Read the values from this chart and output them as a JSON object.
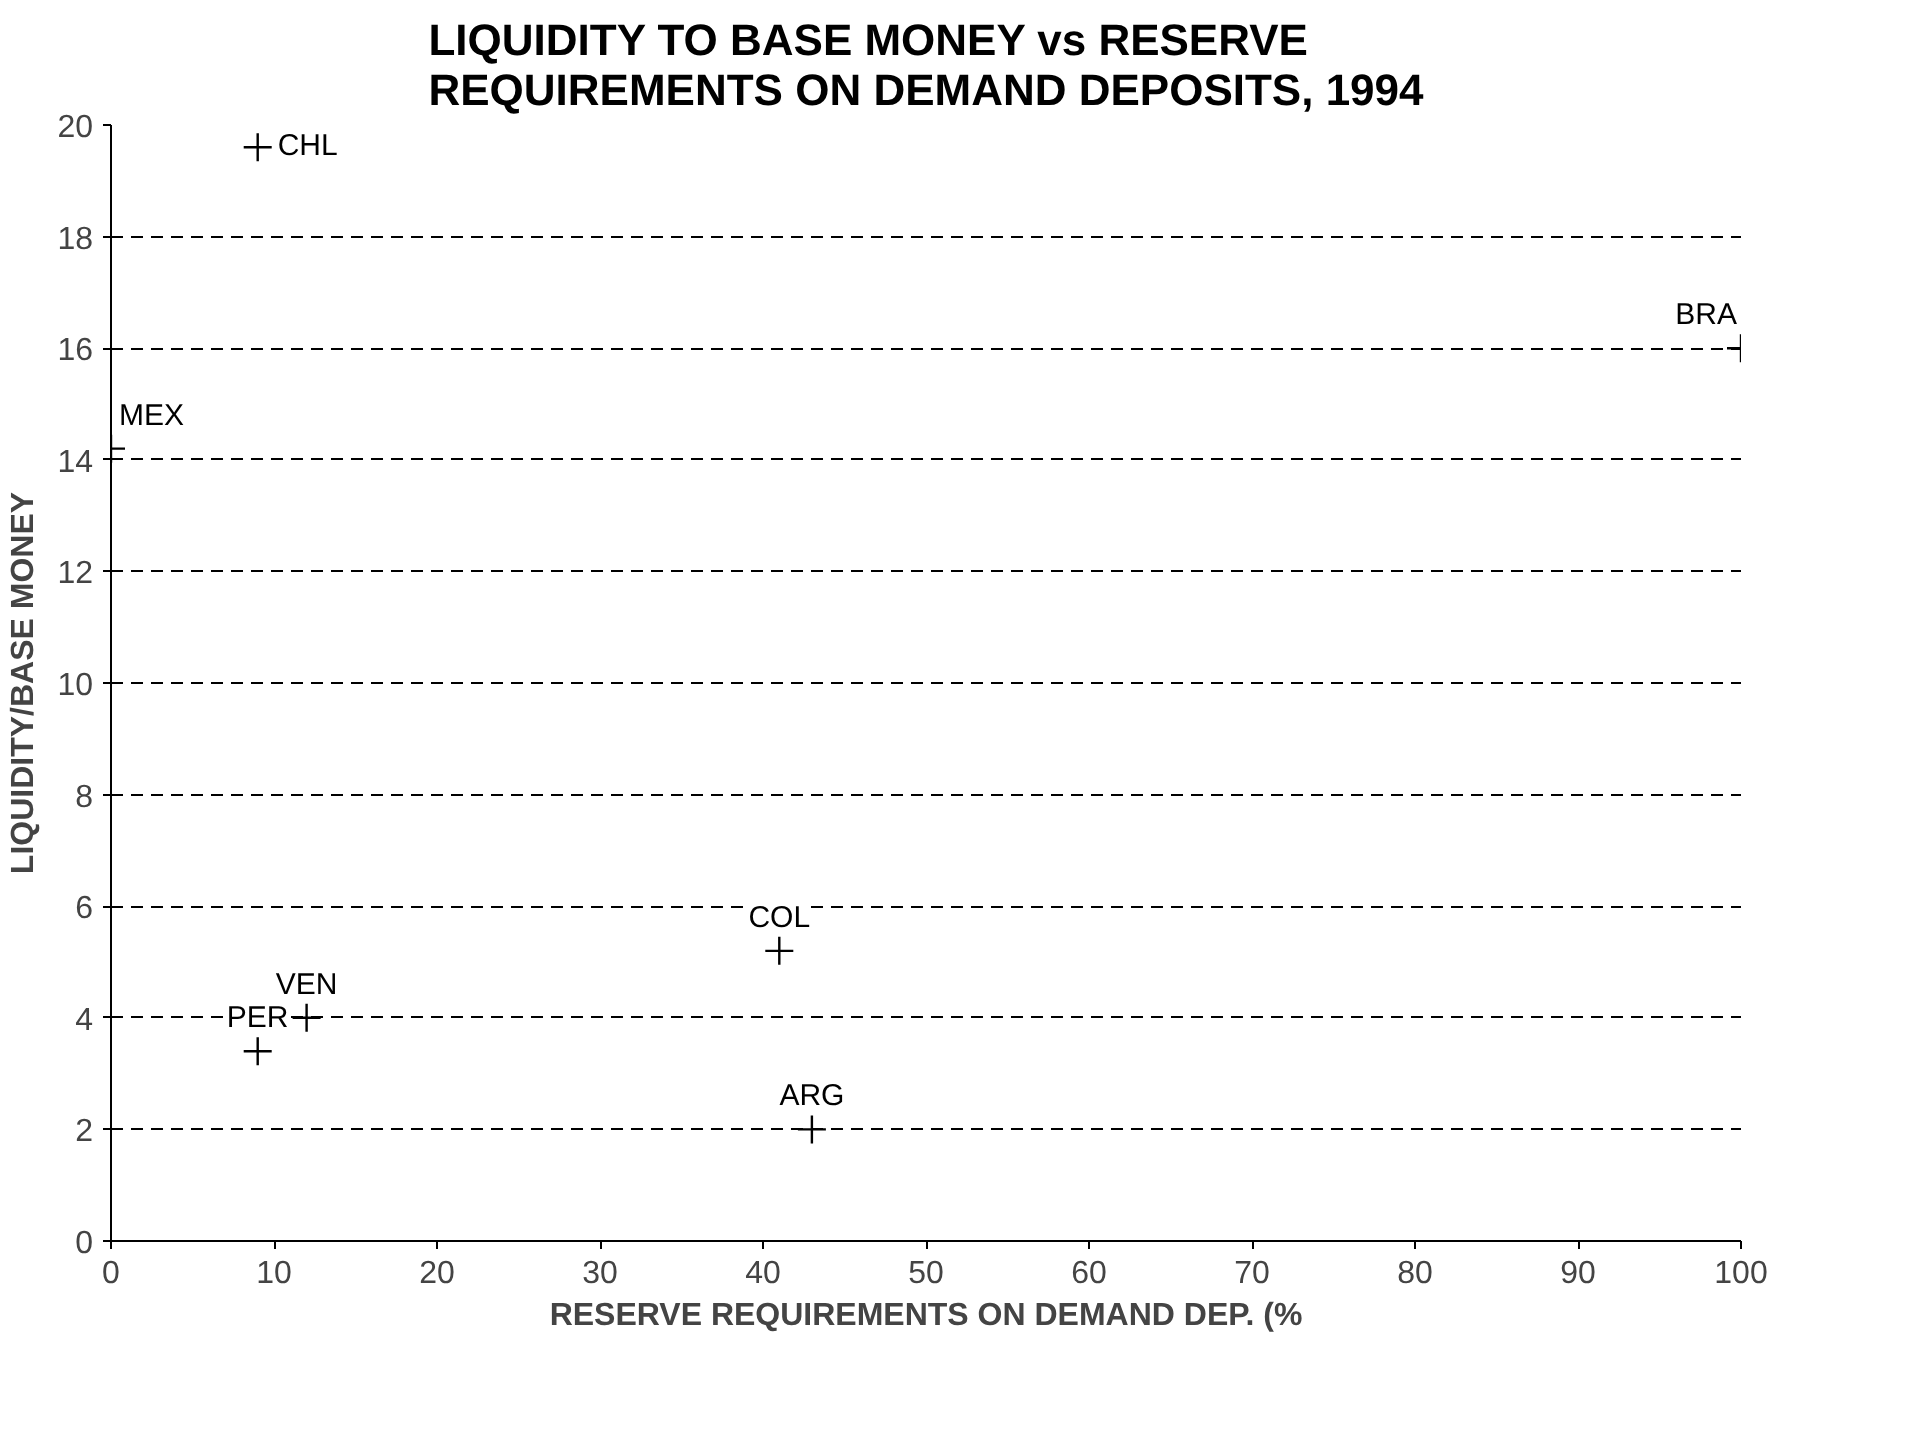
{
  "chart_data": {
    "type": "scatter",
    "title": "LIQUIDITY TO BASE MONEY vs RESERVE\nREQUIREMENTS ON DEMAND DEPOSITS, 1994",
    "xlabel": "RESERVE REQUIREMENTS ON DEMAND DEP. (%",
    "ylabel": "LIQUIDITY/BASE MONEY",
    "x": [
      9,
      9,
      12,
      41,
      43,
      100,
      0
    ],
    "values": [
      19.6,
      3.4,
      4.0,
      5.2,
      2.0,
      16.0,
      14.2
    ],
    "color": "#000000",
    "marker": "cross",
    "annotations": [
      {
        "text": "CHL",
        "x": 9,
        "y": 19.6
      },
      {
        "text": "PER",
        "x": 9,
        "y": 3.4
      },
      {
        "text": "VEN",
        "x": 12,
        "y": 4.0
      },
      {
        "text": "COL",
        "x": 41,
        "y": 5.2
      },
      {
        "text": "ARG",
        "x": 43,
        "y": 2.0
      },
      {
        "text": "BRA",
        "x": 100,
        "y": 16.0
      },
      {
        "text": "MEX",
        "x": 0,
        "y": 14.2
      }
    ],
    "xlim": [
      0,
      100
    ],
    "ylim": [
      0,
      20
    ],
    "xticks": [
      0,
      10,
      20,
      30,
      40,
      50,
      60,
      70,
      80,
      90,
      100
    ],
    "yticks": [
      0,
      2,
      4,
      6,
      8,
      10,
      12,
      14,
      16,
      18,
      20
    ],
    "grid": "y"
  }
}
